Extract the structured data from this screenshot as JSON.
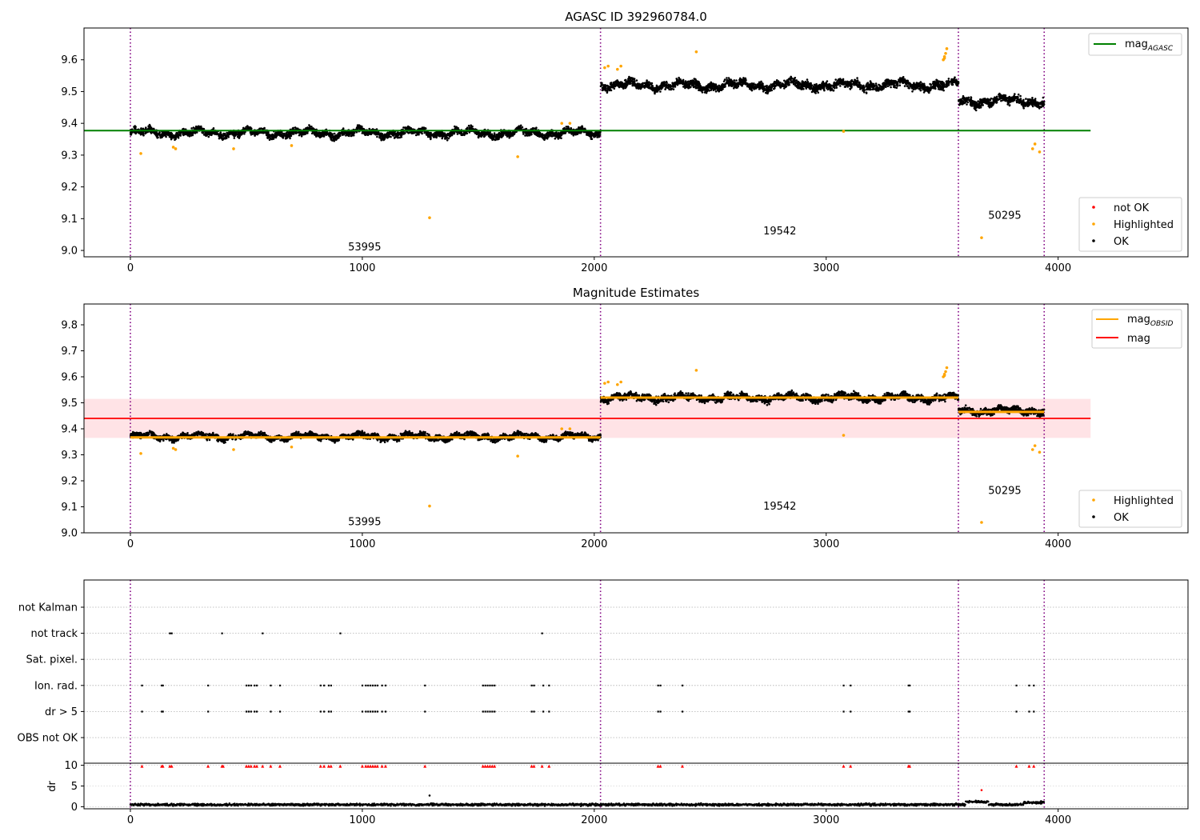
{
  "chart_data": [
    {
      "id": "panel1",
      "type": "scatter",
      "title": "AGASC ID 392960784.0",
      "xlabel": "",
      "ylabel": "",
      "xlim": [
        -200,
        4560
      ],
      "ylim": [
        8.98,
        9.7
      ],
      "xticks": [
        0,
        1000,
        2000,
        3000,
        4000
      ],
      "yticks": [
        9.0,
        9.1,
        9.2,
        9.3,
        9.4,
        9.5,
        9.6
      ],
      "legend_lines": [
        {
          "label": "mag",
          "sub": "AGASC",
          "color": "#008000"
        }
      ],
      "legend_points": [
        {
          "label": "not OK",
          "color": "#ff0000"
        },
        {
          "label": "Highlighted",
          "color": "#ffa500"
        },
        {
          "label": "OK",
          "color": "#000000"
        }
      ],
      "obsid_boundaries": [
        0,
        2027,
        3570,
        3940
      ],
      "obsid_labels": [
        {
          "text": "53995",
          "x": 1010,
          "y": 9.0
        },
        {
          "text": "19542",
          "x": 2800,
          "y": 9.05
        },
        {
          "text": "50295",
          "x": 3770,
          "y": 9.1
        }
      ],
      "hlines": [
        {
          "name": "mag_agasc",
          "y": 9.377,
          "x": [
            -200,
            4140
          ],
          "color": "#008000"
        }
      ],
      "ok_segments": [
        {
          "x": [
            0,
            2027
          ],
          "level": 9.37,
          "spread": 0.025
        },
        {
          "x": [
            2027,
            3570
          ],
          "level": 9.52,
          "spread": 0.03
        },
        {
          "x": [
            3570,
            3940
          ],
          "level": 9.47,
          "spread": 0.03
        }
      ],
      "highlighted": [
        [
          45,
          9.305
        ],
        [
          185,
          9.325
        ],
        [
          195,
          9.32
        ],
        [
          445,
          9.32
        ],
        [
          695,
          9.33
        ],
        [
          1290,
          9.103
        ],
        [
          1670,
          9.295
        ],
        [
          1860,
          9.4
        ],
        [
          1895,
          9.4
        ],
        [
          2045,
          9.575
        ],
        [
          2060,
          9.58
        ],
        [
          2100,
          9.57
        ],
        [
          2115,
          9.58
        ],
        [
          2440,
          9.625
        ],
        [
          3075,
          9.375
        ],
        [
          3505,
          9.6
        ],
        [
          3510,
          9.61
        ],
        [
          3515,
          9.62
        ],
        [
          3520,
          9.635
        ],
        [
          3510,
          9.605
        ],
        [
          3670,
          9.04
        ],
        [
          3890,
          9.32
        ],
        [
          3900,
          9.335
        ],
        [
          3920,
          9.31
        ]
      ]
    },
    {
      "id": "panel2",
      "type": "scatter",
      "title": "Magnitude Estimates",
      "xlabel": "",
      "ylabel": "",
      "xlim": [
        -200,
        4560
      ],
      "ylim": [
        9.0,
        9.88
      ],
      "xticks": [
        0,
        1000,
        2000,
        3000,
        4000
      ],
      "yticks": [
        9.0,
        9.1,
        9.2,
        9.3,
        9.4,
        9.5,
        9.6,
        9.7,
        9.8
      ],
      "legend_lines": [
        {
          "label": "mag",
          "sub": "OBSID",
          "color": "#ffa500"
        },
        {
          "label": "mag",
          "sub": "",
          "color": "#ff0000"
        }
      ],
      "legend_points": [
        {
          "label": "Highlighted",
          "color": "#ffa500"
        },
        {
          "label": "OK",
          "color": "#000000"
        }
      ],
      "obsid_boundaries": [
        0,
        2027,
        3570,
        3940
      ],
      "obsid_labels": [
        {
          "text": "53995",
          "x": 1010,
          "y": 9.03
        },
        {
          "text": "19542",
          "x": 2800,
          "y": 9.09
        },
        {
          "text": "50295",
          "x": 3770,
          "y": 9.15
        }
      ],
      "band": {
        "y": [
          9.365,
          9.515
        ],
        "x": [
          -200,
          4140
        ],
        "color": "#ffc0c8"
      },
      "hlines": [
        {
          "name": "mag",
          "y": 9.44,
          "x": [
            -200,
            4140
          ],
          "color": "#ff0000"
        },
        {
          "name": "mag_obsid_1",
          "y": 9.367,
          "x": [
            0,
            2027
          ],
          "color": "#ffa500"
        },
        {
          "name": "mag_obsid_2",
          "y": 9.52,
          "x": [
            2027,
            3570
          ],
          "color": "#ffa500"
        },
        {
          "name": "mag_obsid_3",
          "y": 9.465,
          "x": [
            3570,
            3940
          ],
          "color": "#ffa500"
        }
      ],
      "ok_segments": [
        {
          "x": [
            0,
            2027
          ],
          "level": 9.37,
          "spread": 0.025
        },
        {
          "x": [
            2027,
            3570
          ],
          "level": 9.52,
          "spread": 0.03
        },
        {
          "x": [
            3570,
            3940
          ],
          "level": 9.47,
          "spread": 0.03
        }
      ],
      "highlighted": [
        [
          45,
          9.305
        ],
        [
          185,
          9.325
        ],
        [
          195,
          9.32
        ],
        [
          445,
          9.32
        ],
        [
          695,
          9.33
        ],
        [
          1290,
          9.103
        ],
        [
          1670,
          9.295
        ],
        [
          1860,
          9.4
        ],
        [
          1895,
          9.4
        ],
        [
          2045,
          9.575
        ],
        [
          2060,
          9.58
        ],
        [
          2100,
          9.57
        ],
        [
          2115,
          9.58
        ],
        [
          2440,
          9.625
        ],
        [
          3075,
          9.375
        ],
        [
          3505,
          9.6
        ],
        [
          3510,
          9.61
        ],
        [
          3515,
          9.62
        ],
        [
          3520,
          9.635
        ],
        [
          3510,
          9.605
        ],
        [
          3670,
          9.04
        ],
        [
          3890,
          9.32
        ],
        [
          3900,
          9.335
        ],
        [
          3920,
          9.31
        ]
      ]
    },
    {
      "id": "panel3",
      "type": "scatter",
      "title": "",
      "xlim": [
        -200,
        4560
      ],
      "xticks": [
        0,
        1000,
        2000,
        3000,
        4000
      ],
      "categories": [
        "not Kalman",
        "not track",
        "Sat. pixel.",
        "Ion. rad.",
        "dr > 5",
        "OBS not OK"
      ],
      "obsid_boundaries": [
        0,
        2027,
        3570,
        3940
      ],
      "flags": {
        "not track": [
          170,
          178,
          395,
          570,
          905,
          1775
        ],
        "Ion. rad.": [
          50,
          135,
          140,
          335,
          500,
          510,
          520,
          535,
          545,
          605,
          645,
          820,
          835,
          855,
          865,
          1000,
          1015,
          1025,
          1035,
          1045,
          1055,
          1065,
          1085,
          1100,
          1270,
          1520,
          1530,
          1540,
          1550,
          1560,
          1570,
          1730,
          1740,
          1780,
          1805,
          2275,
          2285,
          2380,
          3075,
          3105,
          3355,
          3360,
          3820,
          3875,
          3895
        ],
        "dr > 5": [
          50,
          135,
          140,
          335,
          500,
          510,
          520,
          535,
          545,
          605,
          645,
          820,
          835,
          855,
          865,
          1000,
          1015,
          1025,
          1035,
          1045,
          1055,
          1065,
          1085,
          1100,
          1270,
          1520,
          1530,
          1540,
          1550,
          1560,
          1570,
          1730,
          1740,
          1780,
          1805,
          2275,
          2285,
          2380,
          3075,
          3105,
          3355,
          3360,
          3820,
          3875,
          3895
        ]
      }
    },
    {
      "id": "panel4",
      "type": "scatter",
      "title": "",
      "ylabel": "dr",
      "xlim": [
        -200,
        4560
      ],
      "ylim": [
        -0.5,
        10.5
      ],
      "xticks": [
        0,
        1000,
        2000,
        3000,
        4000
      ],
      "yticks": [
        0,
        5,
        10
      ],
      "obsid_boundaries": [
        0,
        2027,
        3570,
        3940
      ],
      "baseline": {
        "x": [
          0,
          3940
        ],
        "level": 0.5,
        "spread": 0.4
      },
      "clipped_high": [
        50,
        135,
        140,
        170,
        178,
        335,
        395,
        400,
        500,
        510,
        520,
        535,
        545,
        570,
        605,
        645,
        820,
        835,
        855,
        865,
        905,
        1000,
        1015,
        1025,
        1035,
        1045,
        1055,
        1065,
        1085,
        1100,
        1270,
        1520,
        1530,
        1540,
        1550,
        1560,
        1570,
        1730,
        1740,
        1775,
        1805,
        2275,
        2285,
        2380,
        3075,
        3105,
        3355,
        3360,
        3820,
        3875,
        3895
      ],
      "outliers": [
        [
          1290,
          2.7
        ],
        [
          3670,
          4.0
        ]
      ]
    }
  ]
}
